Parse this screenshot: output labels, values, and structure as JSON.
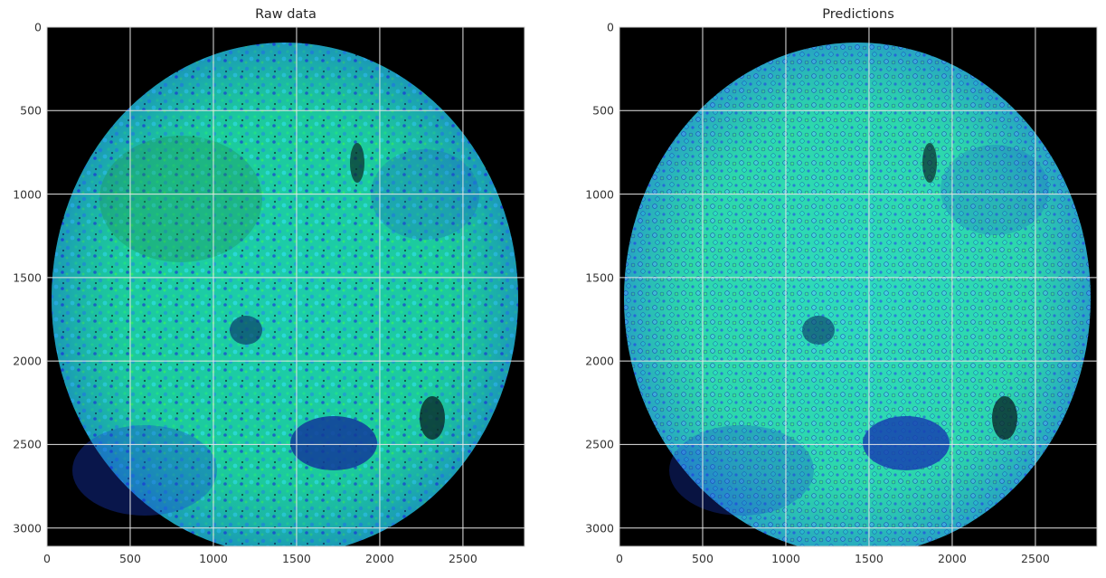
{
  "figure": {
    "panels": [
      {
        "id": "raw",
        "title": "Raw data"
      },
      {
        "id": "pred",
        "title": "Predictions"
      }
    ],
    "x_ticks": [
      "0",
      "500",
      "1000",
      "1500",
      "2000",
      "2500"
    ],
    "y_ticks": [
      "0",
      "500",
      "1000",
      "1500",
      "2000",
      "2500",
      "3000"
    ],
    "x_range": [
      0,
      2870
    ],
    "y_range": [
      0,
      3110
    ],
    "grid": true,
    "colors": {
      "background": "#000000",
      "tissue_green": "#1fd46a",
      "tissue_cyan": "#28e0d0",
      "tissue_blue": "#1a3fd8",
      "grid": "#e6e6e6"
    }
  }
}
